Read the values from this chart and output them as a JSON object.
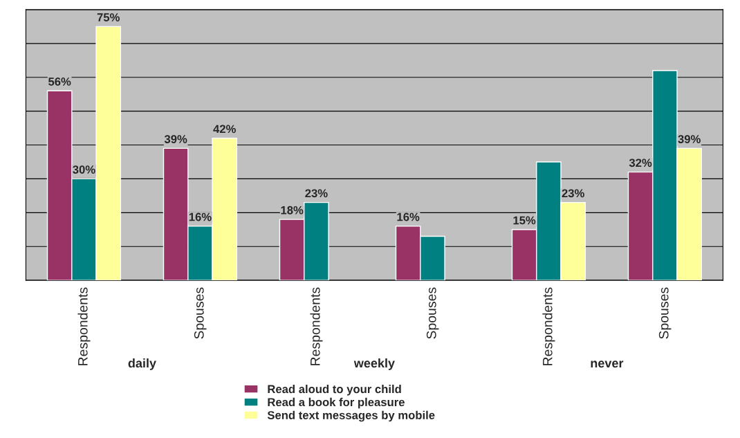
{
  "chart_data": {
    "type": "bar",
    "categories": [
      "Respondents",
      "Spouses",
      "Respondents",
      "Spouses",
      "Respondents",
      "Spouses"
    ],
    "annotations": [
      "daily",
      "weekly",
      "never"
    ],
    "series": [
      {
        "name": "Read aloud to your child",
        "color": "#993366",
        "values": [
          56,
          39,
          18,
          16,
          15,
          32
        ],
        "value_labels": [
          "56%",
          "39%",
          "18%",
          "16%",
          "15%",
          "32%"
        ]
      },
      {
        "name": "Read a book for pleasure",
        "color": "#008080",
        "values": [
          30,
          16,
          23,
          13,
          35,
          62
        ],
        "value_labels": [
          "30%",
          "16%",
          "23%",
          null,
          null,
          null
        ]
      },
      {
        "name": "Send text messages by mobile",
        "color": "#ffff99",
        "values": [
          75,
          42,
          null,
          null,
          23,
          39
        ],
        "value_labels": [
          "75%",
          "42%",
          null,
          null,
          "23%",
          "39%"
        ]
      }
    ],
    "ylim": [
      0,
      80
    ],
    "yticks": [
      {
        "value": 0,
        "label": null
      },
      {
        "value": 10,
        "label": null
      },
      {
        "value": 20,
        "label": null
      },
      {
        "value": 30,
        "label": null
      },
      {
        "value": 40,
        "label": null
      },
      {
        "value": 50,
        "label": null
      },
      {
        "value": 60,
        "label": null
      },
      {
        "value": 70,
        "label": null
      },
      {
        "value": 80,
        "label": null
      }
    ],
    "grid": "y",
    "legend": "bottom",
    "tick_labels": "x"
  }
}
